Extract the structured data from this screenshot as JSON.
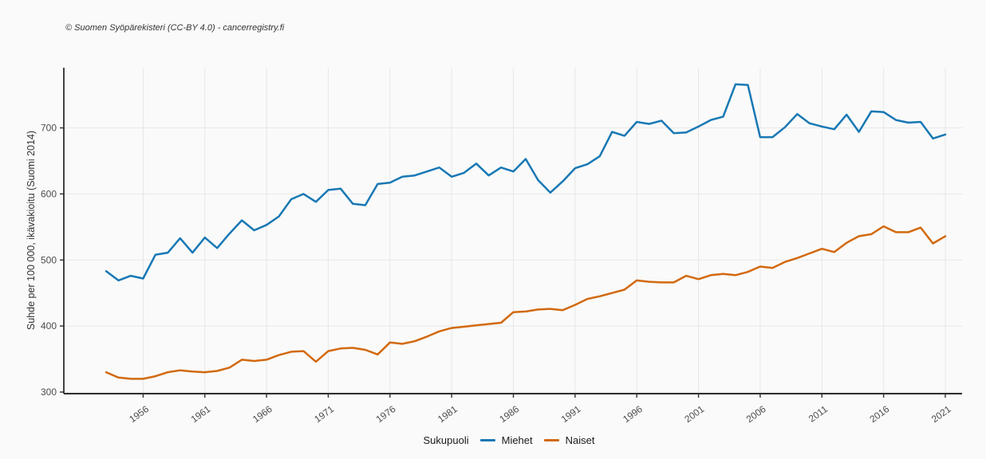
{
  "header": {
    "copyright": "© Suomen Syöpärekisteri (CC-BY 4.0) - cancerregistry.fi"
  },
  "colors": {
    "miehet": "#1878b4",
    "naiset": "#d2690e",
    "grid": "#e7e7e7",
    "axis": "#2e2e2e",
    "tick_text": "#4d4d4d",
    "background": "#fafafa"
  },
  "chart_data": {
    "type": "line",
    "title": "",
    "xlabel": "",
    "y_label": "Suhde per 100 000, ikävakioitu (Suomi 2014)",
    "legend_title": "Sukupuoli",
    "legend_position": "bottom",
    "grid": true,
    "x_start": 1953,
    "x_end": 2021,
    "x_ticks": [
      1956,
      1961,
      1966,
      1971,
      1976,
      1981,
      1986,
      1991,
      1996,
      2001,
      2006,
      2011,
      2016,
      2021
    ],
    "y_ticks": [
      300,
      400,
      500,
      600,
      700
    ],
    "ylim": [
      298,
      790
    ],
    "series": [
      {
        "name": "Miehet",
        "color": "#1878b4",
        "values": [
          483,
          469,
          476,
          472,
          508,
          511,
          533,
          511,
          534,
          518,
          540,
          560,
          545,
          553,
          566,
          592,
          600,
          588,
          606,
          608,
          585,
          583,
          615,
          617,
          626,
          628,
          634,
          640,
          626,
          632,
          646,
          628,
          640,
          634,
          653,
          621,
          602,
          619,
          639,
          645,
          657,
          694,
          688,
          709,
          706,
          711,
          692,
          693,
          702,
          712,
          717,
          766,
          765,
          686,
          686,
          701,
          721,
          707,
          702,
          698,
          720,
          694,
          725,
          724,
          712,
          708,
          709,
          684,
          690
        ]
      },
      {
        "name": "Naiset",
        "color": "#d2690e",
        "values": [
          330,
          322,
          320,
          320,
          324,
          330,
          333,
          331,
          330,
          332,
          337,
          349,
          347,
          349,
          356,
          361,
          362,
          346,
          362,
          366,
          367,
          364,
          357,
          375,
          373,
          377,
          384,
          392,
          397,
          399,
          401,
          403,
          405,
          421,
          422,
          425,
          426,
          424,
          432,
          441,
          445,
          450,
          455,
          469,
          467,
          466,
          466,
          476,
          471,
          477,
          479,
          477,
          482,
          490,
          488,
          497,
          503,
          510,
          517,
          512,
          526,
          536,
          539,
          551,
          542,
          542,
          549,
          525,
          536
        ]
      }
    ]
  }
}
